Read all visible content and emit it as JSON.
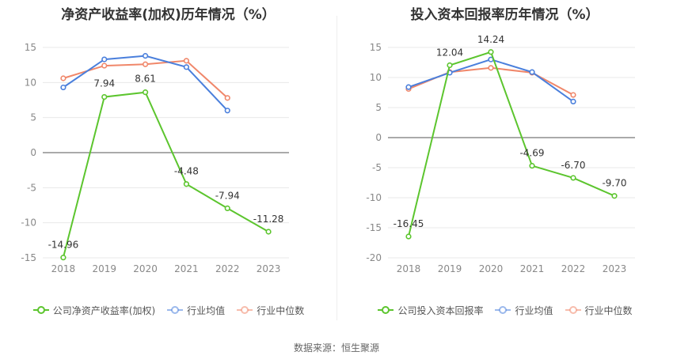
{
  "source_text": "数据来源：恒生聚源",
  "chart_data": [
    {
      "type": "line",
      "title": "净资产收益率(加权)历年情况（%）",
      "categories": [
        "2018",
        "2019",
        "2020",
        "2021",
        "2022",
        "2023"
      ],
      "ylim": [
        -15,
        15
      ],
      "yticks": [
        15,
        10,
        5,
        0,
        -5,
        -10,
        -15
      ],
      "legend_position": "bottom",
      "series": [
        {
          "name": "公司净资产收益率(加权)",
          "color": "#5cc52e",
          "values": [
            -14.96,
            7.94,
            8.61,
            -4.48,
            -7.94,
            -11.28
          ],
          "labeled": true
        },
        {
          "name": "行业均值",
          "color": "#4a7fdc",
          "values": [
            9.3,
            13.3,
            13.8,
            12.2,
            6.0,
            null
          ],
          "labeled": false
        },
        {
          "name": "行业中位数",
          "color": "#f0876a",
          "values": [
            10.6,
            12.4,
            12.6,
            13.1,
            7.8,
            null
          ],
          "labeled": false
        }
      ],
      "data_labels": [
        "-14.96",
        "7.94",
        "8.61",
        "-4.48",
        "-7.94",
        "-11.28"
      ]
    },
    {
      "type": "line",
      "title": "投入资本回报率历年情况（%）",
      "categories": [
        "2018",
        "2019",
        "2020",
        "2021",
        "2022",
        "2023"
      ],
      "ylim": [
        -20,
        15
      ],
      "yticks": [
        15,
        10,
        5,
        0,
        -5,
        -10,
        -15,
        -20
      ],
      "legend_position": "bottom",
      "series": [
        {
          "name": "公司投入资本回报率",
          "color": "#5cc52e",
          "values": [
            -16.45,
            12.04,
            14.24,
            -4.69,
            -6.7,
            -9.7
          ],
          "labeled": true
        },
        {
          "name": "行业均值",
          "color": "#4a7fdc",
          "values": [
            8.4,
            10.8,
            13.0,
            10.9,
            6.0,
            null
          ],
          "labeled": false
        },
        {
          "name": "行业中位数",
          "color": "#f0876a",
          "values": [
            8.1,
            10.9,
            11.6,
            10.8,
            7.1,
            null
          ],
          "labeled": false
        }
      ],
      "data_labels": [
        "-16.45",
        "12.04",
        "14.24",
        "-4.69",
        "-6.70",
        "-9.70"
      ]
    }
  ]
}
